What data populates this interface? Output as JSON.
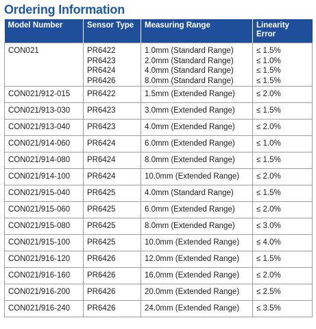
{
  "header": {
    "title": "Ordering Information"
  },
  "table": {
    "columns": [
      "Model Number",
      "Sensor Type",
      "Measuring Range",
      "Linearity Error"
    ],
    "rows": [
      [
        "CON021",
        [
          "PR6422",
          "PR6423",
          "PR6424",
          "PR6426"
        ],
        [
          "1.0mm (Standard Range)",
          "2.0mm (Standard Range)",
          "4.0mm (Standard Range)",
          "8.0mm (Standard Range)"
        ],
        [
          "≤ 1.5%",
          "≤ 1.0%",
          "≤ 1.5%",
          "≤ 1.5%"
        ]
      ],
      [
        "CON021/912-015",
        "PR6422",
        "1.5mm (Extended Range)",
        "≤ 2.0%"
      ],
      [
        "CON021/913-030",
        "PR6423",
        "3.0mm (Extended Range)",
        "≤ 1.5%"
      ],
      [
        "CON021/913-040",
        "PR6423",
        "4.0mm (Extended Range)",
        "≤ 2.0%"
      ],
      [
        "CON021/914-060",
        "PR6424",
        "6.0mm (Extended Range)",
        "≤ 1.0%"
      ],
      [
        "CON021/914-080",
        "PR6424",
        "8.0mm (Extended Range)",
        "≤ 1.5%"
      ],
      [
        "CON021/914-100",
        "PR6424",
        "10.0mm (Extended Range)",
        "≤ 2.0%"
      ],
      [
        "CON021/915-040",
        "PR6425",
        "4.0mm (Standard Range)",
        "≤ 1.5%"
      ],
      [
        "CON021/915-060",
        "PR6425",
        "6.0mm (Extended Range)",
        "≤ 2.0%"
      ],
      [
        "CON021/915-080",
        "PR6425",
        "8.0mm (Extended Range)",
        "≤ 3.0%"
      ],
      [
        "CON021/915-100",
        "PR6425",
        "10.0mm (Extended Range)",
        "≤ 4.0%"
      ],
      [
        "CON021/916-120",
        "PR6426",
        "12.0mm (Extended Range)",
        "≤ 1.5%"
      ],
      [
        "CON021/916-160",
        "PR6426",
        "16.0mm (Extended Range)",
        "≤ 2.0%"
      ],
      [
        "CON021/916-200",
        "PR6426",
        "20.0mm (Extended Range)",
        "≤ 2.5%"
      ],
      [
        "CON021/916-240",
        "PR6426",
        "24.0mm (Extended Range)",
        "≤ 3.5%"
      ]
    ]
  }
}
